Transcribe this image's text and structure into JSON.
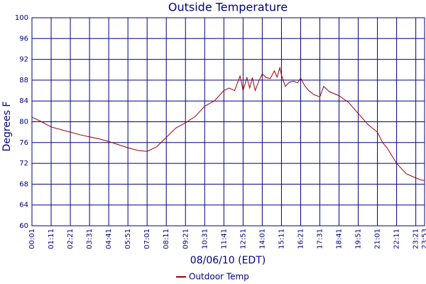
{
  "chart_data": {
    "type": "line",
    "title": "Outside Temperature",
    "x_label": "08/06/10 (EDT)",
    "y_label": "Degrees F",
    "x": [
      "00:01",
      "00:36",
      "01:11",
      "01:46",
      "02:21",
      "02:56",
      "03:31",
      "04:06",
      "04:41",
      "05:16",
      "05:51",
      "06:26",
      "07:01",
      "07:36",
      "08:11",
      "08:46",
      "09:21",
      "09:56",
      "10:31",
      "11:06",
      "11:41",
      "12:00",
      "12:20",
      "12:40",
      "12:51",
      "13:05",
      "13:15",
      "13:25",
      "13:35",
      "13:50",
      "14:01",
      "14:15",
      "14:30",
      "14:45",
      "14:55",
      "15:05",
      "15:11",
      "15:25",
      "15:40",
      "15:55",
      "16:10",
      "16:21",
      "16:35",
      "16:50",
      "17:10",
      "17:31",
      "17:45",
      "18:05",
      "18:41",
      "19:16",
      "19:51",
      "20:26",
      "21:01",
      "21:20",
      "21:36",
      "22:11",
      "22:46",
      "23:21",
      "23:40",
      "23:53"
    ],
    "series": [
      {
        "name": "Outdoor Temp",
        "color": "#a00000",
        "values": [
          80.9,
          80.0,
          79.0,
          78.5,
          78.0,
          77.5,
          77.1,
          76.7,
          76.2,
          75.6,
          75.0,
          74.5,
          74.3,
          75.2,
          77.0,
          78.8,
          79.8,
          81.0,
          83.0,
          84.0,
          86.0,
          86.5,
          86.0,
          88.8,
          86.0,
          88.5,
          86.5,
          88.5,
          86.0,
          88.0,
          89.2,
          88.5,
          88.3,
          89.8,
          88.6,
          90.4,
          89.0,
          86.8,
          87.6,
          87.8,
          87.5,
          88.4,
          87.0,
          86.0,
          85.2,
          84.8,
          86.8,
          85.8,
          85.0,
          83.7,
          81.6,
          79.5,
          78.0,
          76.0,
          75.0,
          72.0,
          70.0,
          69.2,
          68.8,
          68.7
        ]
      }
    ],
    "xlim": [
      "00:01",
      "23:53"
    ],
    "xticks": [
      "00:01",
      "01:11",
      "02:21",
      "03:31",
      "04:41",
      "05:51",
      "07:01",
      "08:11",
      "09:21",
      "10:31",
      "11:41",
      "12:51",
      "14:01",
      "15:11",
      "16:21",
      "17:31",
      "18:41",
      "19:51",
      "21:01",
      "22:11",
      "23:21",
      "23:53"
    ],
    "ylim": [
      60,
      100
    ],
    "yticks": [
      60,
      64,
      68,
      72,
      76,
      80,
      84,
      88,
      92,
      96,
      100
    ],
    "grid": true
  }
}
